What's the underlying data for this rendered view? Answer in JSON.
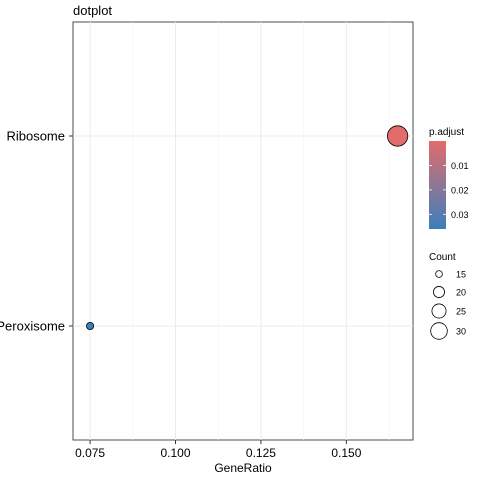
{
  "chart_data": {
    "type": "scatter",
    "title": "dotplot",
    "xlabel": "GeneRatio",
    "ylabel": "",
    "xlim": [
      0.07,
      0.1695
    ],
    "x_ticks": [
      0.075,
      0.1,
      0.125,
      0.15
    ],
    "x_tick_labels": [
      "0.075",
      "0.100",
      "0.125",
      "0.150"
    ],
    "categories": [
      "Ribosome",
      "Peroxisome"
    ],
    "points": [
      {
        "category": "Ribosome",
        "x": 0.165,
        "count": 33,
        "p_adjust": 0.0005,
        "color": "#e26c6b"
      },
      {
        "category": "Peroxisome",
        "x": 0.075,
        "count": 15,
        "p_adjust": 0.036,
        "color": "#3b7fbc"
      }
    ],
    "grid": true,
    "color_legend": {
      "title": "p.adjust",
      "low_color": "#e26c6b",
      "high_color": "#3b7fbc",
      "range": [
        0.0,
        0.036
      ],
      "ticks": [
        0.01,
        0.02,
        0.03
      ],
      "tick_labels": [
        "0.01",
        "0.02",
        "0.03"
      ]
    },
    "size_legend": {
      "title": "Count",
      "values": [
        15,
        20,
        25,
        30
      ],
      "labels": [
        "15",
        "20",
        "25",
        "30"
      ],
      "range": [
        15,
        33
      ]
    }
  }
}
